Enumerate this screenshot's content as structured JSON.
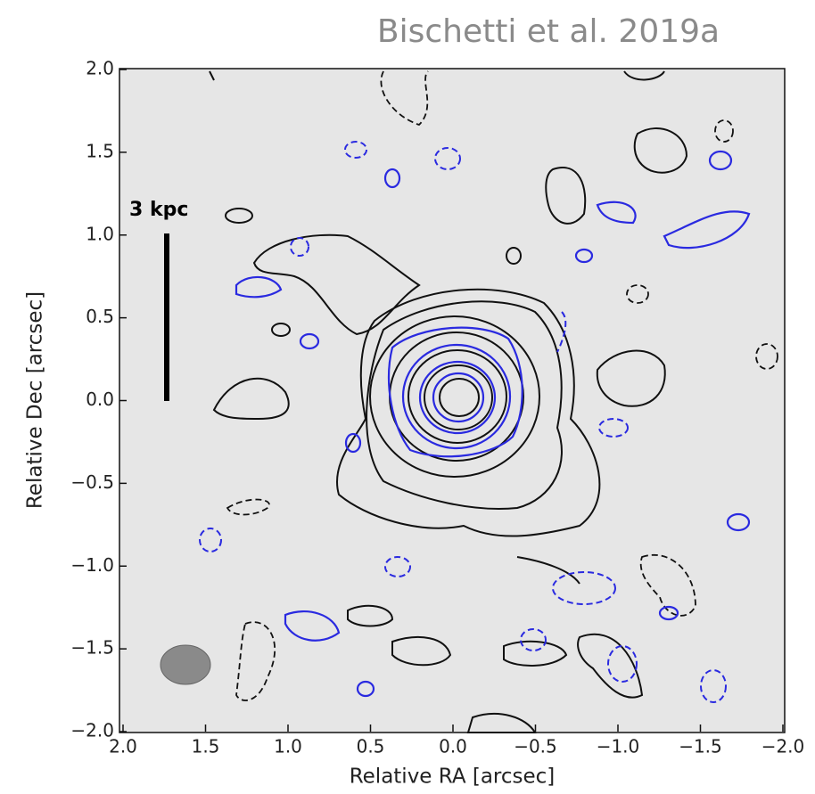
{
  "chart_data": {
    "type": "contour",
    "title": "Bischetti et al. 2019a",
    "xlabel": "Relative RA [arcsec]",
    "ylabel": "Relative Dec [arcsec]",
    "annotation": "3 kpc",
    "xlim": [
      2.0,
      -2.0
    ],
    "ylim": [
      -2.0,
      2.0
    ],
    "xticks": [
      {
        "value": 2.0,
        "label": "2.0"
      },
      {
        "value": 1.5,
        "label": "1.5"
      },
      {
        "value": 1.0,
        "label": "1.0"
      },
      {
        "value": 0.5,
        "label": "0.5"
      },
      {
        "value": 0.0,
        "label": "0.0"
      },
      {
        "value": -0.5,
        "label": "−0.5"
      },
      {
        "value": -1.0,
        "label": "−1.0"
      },
      {
        "value": -1.5,
        "label": "−1.5"
      },
      {
        "value": -2.0,
        "label": "−2.0"
      }
    ],
    "yticks": [
      {
        "value": -2.0,
        "label": "−2.0"
      },
      {
        "value": -1.5,
        "label": "−1.5"
      },
      {
        "value": -1.0,
        "label": "−1.0"
      },
      {
        "value": -0.5,
        "label": "−0.5"
      },
      {
        "value": 0.0,
        "label": "0.0"
      },
      {
        "value": 0.5,
        "label": "0.5"
      },
      {
        "value": 1.0,
        "label": "1.0"
      },
      {
        "value": 1.5,
        "label": "1.5"
      },
      {
        "value": 2.0,
        "label": "2.0"
      }
    ]
  }
}
